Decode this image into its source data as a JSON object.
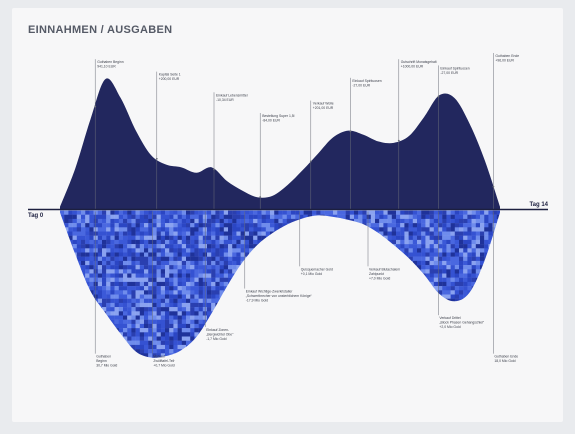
{
  "chart_data": {
    "type": "area",
    "title": "EINNAHMEN / AUSGABEN",
    "axis_start_label": "Tag 0",
    "axis_end_label": "Tag 14",
    "colors": {
      "income": "#22275e",
      "expense_palette": [
        "#2b46c4",
        "#3552d2",
        "#2a3fb0",
        "#4a68e0",
        "#6f8cec",
        "#1f329a",
        "#8aa2f0",
        "#3b59d8"
      ]
    },
    "income_series": {
      "y_relative": [
        0.02,
        0.3,
        0.66,
        0.96,
        0.82,
        0.58,
        0.4,
        0.33,
        0.31,
        0.27,
        0.31,
        0.21,
        0.14,
        0.09,
        0.1,
        0.18,
        0.29,
        0.41,
        0.53,
        0.58,
        0.55,
        0.5,
        0.49,
        0.54,
        0.68,
        0.84,
        0.82,
        0.63,
        0.36,
        0.02
      ]
    },
    "expense_series": {
      "y_relative": [
        0.02,
        0.3,
        0.55,
        0.7,
        0.84,
        0.96,
        1.0,
        0.99,
        0.95,
        0.86,
        0.7,
        0.52,
        0.36,
        0.24,
        0.16,
        0.1,
        0.06,
        0.04,
        0.05,
        0.07,
        0.1,
        0.16,
        0.24,
        0.33,
        0.44,
        0.57,
        0.62,
        0.56,
        0.34,
        0.02
      ]
    },
    "income_annotations": [
      {
        "t": "0.08",
        "line1": "Guthaben Beginn",
        "line2": "941,10 EUR",
        "label_top": "0.15"
      },
      {
        "t": "0.22",
        "line1": "Kapital Seite 1",
        "line2": "+200,00 EUR",
        "label_top": "0.45"
      },
      {
        "t": "0.35",
        "line1": "Einkauf Lebensmittel",
        "line2": "-10,34 EUR",
        "label_top": "0.95"
      },
      {
        "t": "0.455",
        "line1": "Bestellung Super 1,5l",
        "line2": "-84,00 EUR",
        "label_top": "1.45"
      },
      {
        "t": "0.57",
        "line1": "Verkauf Wolle",
        "line2": "+201,00 EUR",
        "label_top": "1.15"
      },
      {
        "t": "0.66",
        "line1": "Einkauf Spirituosen",
        "line2": "-27,00 EUR",
        "label_top": "0.6"
      },
      {
        "t": "0.77",
        "line1": "Gutschrift Monatsgehalt",
        "line2": "+1000,00 EUR",
        "label_top": "0.15"
      },
      {
        "t": "0.86",
        "line1": "Einkauf Spirituosen",
        "line2": "-27,00 EUR",
        "label_top": "0.3"
      },
      {
        "t": "0.985",
        "line1": "Guthaben Ende",
        "line2": "+96,00 EUR",
        "label_top": "0.0"
      }
    ],
    "expense_annotations": [
      {
        "t": "0.08",
        "line1": "Guthaben",
        "line2": "Beginn",
        "line3": "30,7 Mio Gold",
        "label_y": "0.92"
      },
      {
        "t": "0.21",
        "line1": "Verkauf",
        "line2": "Zwölftafel-Teil·",
        "line3": "+0,7 Mio Gold",
        "label_y": "0.92"
      },
      {
        "t": "0.33",
        "line1": "Einkauf Zonen-",
        "line2": "„Bergwichtel Obe“",
        "line3": "-1,7 Mio Gold",
        "label_y": "0.74"
      },
      {
        "t": "0.42",
        "line1": "Einkauf Wichtige-Zwerkristaller",
        "line2": "„Schwertbrecher von unsterblichem Könige“",
        "line3": "-17,9 Mio Gold",
        "label_y": "0.48"
      },
      {
        "t": "0.545",
        "line1": "Quisquemacher Gold",
        "line2": "+0,1 Mio Gold",
        "line3": "",
        "label_y": "0.33"
      },
      {
        "t": "0.70",
        "line1": "Verkauf Blutachalem",
        "line2": "Zahlpunkt",
        "line3": "+7,0 Mio Gold",
        "label_y": "0.33"
      },
      {
        "t": "0.86",
        "line1": "Verkauf Drittel",
        "line2": "„Block Phasen Gehangschlel“",
        "line3": "+2,0 Mio Gold",
        "label_y": "0.66"
      },
      {
        "t": "0.985",
        "line1": "Guthaben Ende",
        "line2": "18,0 Mio Gold",
        "line3": "",
        "label_y": "0.92"
      }
    ]
  }
}
